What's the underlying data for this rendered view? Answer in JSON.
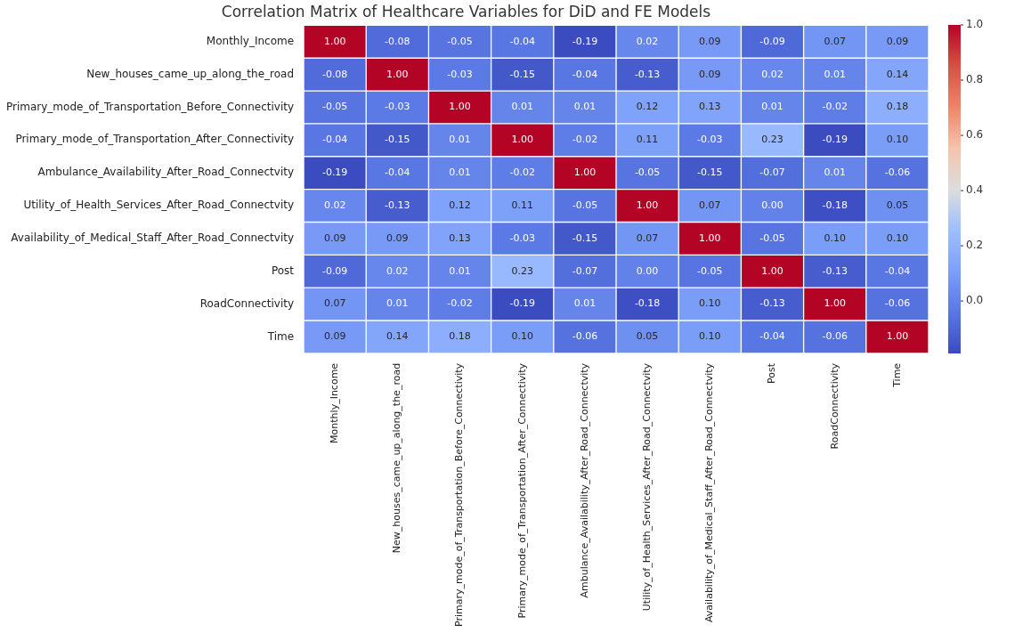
{
  "chart_data": {
    "type": "heatmap",
    "title": "Correlation Matrix of Healthcare Variables for DiD and FE Models",
    "categories": [
      "Monthly_Income",
      "New_houses_came_up_along_the_road",
      "Primary_mode_of_Transportation_Before_Connectivity",
      "Primary_mode_of_Transportation_After_Connectivity",
      "Ambulance_Availability_After_Road_Connectvity",
      "Utility_of_Health_Services_After_Road_Connectvity",
      "Availability_of_Medical_Staff_After_Road_Connectvity",
      "Post",
      "RoadConnectivity",
      "Time"
    ],
    "y_categories": [
      "Monthly_Income",
      "New_houses_came_up_along_the_road",
      "Primary_mode_of_Transportation_Before_Connectivity",
      "Primary_mode_of_Transportation_After_Connectivity",
      "Ambulance_Availability_After_Road_Connectvity",
      "Utility_of_Health_Services_After_Road_Connectvity",
      "Availability_of_Medical_Staff_After_Road_Connectvity",
      "Post",
      "RoadConnectivity",
      "Time"
    ],
    "cells": [
      [
        1.0,
        -0.08,
        -0.05,
        -0.04,
        -0.19,
        0.02,
        0.09,
        -0.09,
        0.07,
        0.09
      ],
      [
        -0.08,
        1.0,
        -0.03,
        -0.15,
        -0.04,
        -0.13,
        0.09,
        0.02,
        0.01,
        0.14
      ],
      [
        -0.05,
        -0.03,
        1.0,
        0.01,
        0.01,
        0.12,
        0.13,
        0.01,
        -0.02,
        0.18
      ],
      [
        -0.04,
        -0.15,
        0.01,
        1.0,
        -0.02,
        0.11,
        -0.03,
        0.23,
        -0.19,
        0.1
      ],
      [
        -0.19,
        -0.04,
        0.01,
        -0.02,
        1.0,
        -0.05,
        -0.15,
        -0.07,
        0.01,
        -0.06
      ],
      [
        0.02,
        -0.13,
        0.12,
        0.11,
        -0.05,
        1.0,
        0.07,
        0.0,
        -0.18,
        0.05
      ],
      [
        0.09,
        0.09,
        0.13,
        -0.03,
        -0.15,
        0.07,
        1.0,
        -0.05,
        0.1,
        0.1
      ],
      [
        -0.09,
        0.02,
        0.01,
        0.23,
        -0.07,
        0.0,
        -0.05,
        1.0,
        -0.13,
        -0.04
      ],
      [
        0.07,
        0.01,
        -0.02,
        -0.19,
        0.01,
        -0.18,
        0.1,
        -0.13,
        1.0,
        -0.06
      ],
      [
        0.09,
        0.14,
        0.18,
        0.1,
        -0.06,
        0.05,
        0.1,
        -0.04,
        -0.06,
        1.0
      ]
    ],
    "cell_labels": [
      [
        "1.00",
        "-0.08",
        "-0.05",
        "-0.04",
        "-0.19",
        "0.02",
        "0.09",
        "-0.09",
        "0.07",
        "0.09"
      ],
      [
        "-0.08",
        "1.00",
        "-0.03",
        "-0.15",
        "-0.04",
        "-0.13",
        "0.09",
        "0.02",
        "0.01",
        "0.14"
      ],
      [
        "-0.05",
        "-0.03",
        "1.00",
        "0.01",
        "0.01",
        "0.12",
        "0.13",
        "0.01",
        "-0.02",
        "0.18"
      ],
      [
        "-0.04",
        "-0.15",
        "0.01",
        "1.00",
        "-0.02",
        "0.11",
        "-0.03",
        "0.23",
        "-0.19",
        "0.10"
      ],
      [
        "-0.19",
        "-0.04",
        "0.01",
        "-0.02",
        "1.00",
        "-0.05",
        "-0.15",
        "-0.07",
        "0.01",
        "-0.06"
      ],
      [
        "0.02",
        "-0.13",
        "0.12",
        "0.11",
        "-0.05",
        "1.00",
        "0.07",
        "0.00",
        "-0.18",
        "0.05"
      ],
      [
        "0.09",
        "0.09",
        "0.13",
        "-0.03",
        "-0.15",
        "0.07",
        "1.00",
        "-0.05",
        "0.10",
        "0.10"
      ],
      [
        "-0.09",
        "0.02",
        "0.01",
        "0.23",
        "-0.07",
        "0.00",
        "-0.05",
        "1.00",
        "-0.13",
        "-0.04"
      ],
      [
        "0.07",
        "0.01",
        "-0.02",
        "-0.19",
        "0.01",
        "-0.18",
        "0.10",
        "-0.13",
        "1.00",
        "-0.06"
      ],
      [
        "0.09",
        "0.14",
        "0.18",
        "0.10",
        "-0.06",
        "0.05",
        "0.10",
        "-0.04",
        "-0.06",
        "1.00"
      ]
    ],
    "clim": [
      -0.19,
      1.0
    ],
    "cticks": [
      {
        "value": 0,
        "label": "0.0"
      },
      {
        "value": 0.2,
        "label": "0.2"
      },
      {
        "value": 0.4,
        "label": "0.4"
      },
      {
        "value": 0.6,
        "label": "0.6"
      },
      {
        "value": 0.8,
        "label": "0.8"
      },
      {
        "value": 1.0,
        "label": "1.0"
      }
    ]
  }
}
